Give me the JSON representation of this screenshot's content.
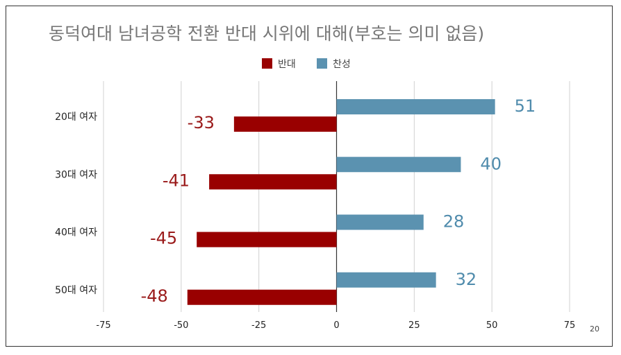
{
  "chart_data": {
    "type": "bar",
    "orientation": "horizontal",
    "title": "동덕여대 남녀공학 전환 반대 시위에 대해(부호는 의미 없음)",
    "categories": [
      "20대 여자",
      "30대 여자",
      "40대 여자",
      "50대 여자"
    ],
    "series": [
      {
        "name": "반대",
        "values": [
          -33,
          -41,
          -45,
          -48
        ],
        "color": "#990000"
      },
      {
        "name": "찬성",
        "values": [
          51,
          40,
          28,
          32
        ],
        "color": "#5b92b0"
      }
    ],
    "xlim": [
      -75,
      75
    ],
    "xticks": [
      -75,
      -50,
      -25,
      0,
      25,
      50,
      75
    ],
    "grid": true,
    "legend": "top-center"
  },
  "page_number": "20"
}
